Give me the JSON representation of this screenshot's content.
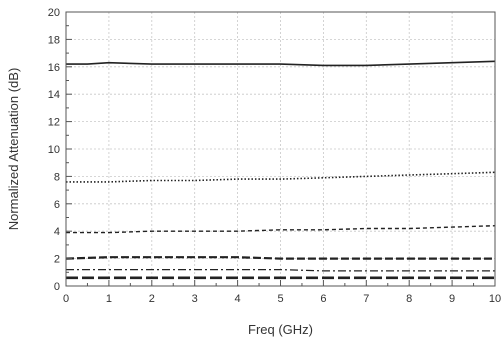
{
  "chart_data": {
    "type": "line",
    "title": "",
    "xlabel": "Freq (GHz)",
    "ylabel": "Normalized Attenuation (dB)",
    "xlim": [
      0,
      10
    ],
    "ylim": [
      0,
      20
    ],
    "x_ticks": [
      "0",
      "1",
      "2",
      "3",
      "4",
      "5",
      "6",
      "7",
      "8",
      "9",
      "10"
    ],
    "y_ticks": [
      "0",
      "2",
      "4",
      "6",
      "8",
      "10",
      "12",
      "14",
      "16",
      "18",
      "20"
    ],
    "grid": true,
    "legend": "none",
    "series": [
      {
        "x": [
          0,
          0.5,
          1,
          2,
          3,
          4,
          5,
          6,
          6.5,
          7,
          8,
          9,
          10
        ],
        "values": [
          16.2,
          16.2,
          16.3,
          16.2,
          16.2,
          16.2,
          16.2,
          16.1,
          16.1,
          16.1,
          16.2,
          16.3,
          16.4
        ],
        "style": "solid",
        "color": "#222222"
      },
      {
        "x": [
          0,
          1,
          2,
          3,
          4,
          5,
          6,
          7,
          8,
          9,
          10
        ],
        "values": [
          7.6,
          7.6,
          7.7,
          7.7,
          7.8,
          7.8,
          7.9,
          8.0,
          8.1,
          8.2,
          8.3
        ],
        "style": "dotted",
        "color": "#222222"
      },
      {
        "x": [
          0,
          1,
          2,
          3,
          4,
          5,
          6,
          7,
          8,
          9,
          10
        ],
        "values": [
          3.9,
          3.9,
          4.0,
          4.0,
          4.0,
          4.1,
          4.1,
          4.2,
          4.2,
          4.3,
          4.4
        ],
        "style": "dashed",
        "color": "#222222"
      },
      {
        "x": [
          0,
          1,
          2,
          3,
          4,
          5,
          6,
          7,
          8,
          9,
          10
        ],
        "values": [
          2.0,
          2.1,
          2.1,
          2.1,
          2.1,
          2.0,
          2.0,
          2.0,
          2.0,
          2.0,
          2.0
        ],
        "style": "long-dashed",
        "color": "#222222"
      },
      {
        "x": [
          0,
          1,
          2,
          3,
          4,
          5,
          6,
          7,
          8,
          9,
          10
        ],
        "values": [
          1.2,
          1.2,
          1.2,
          1.2,
          1.2,
          1.2,
          1.1,
          1.1,
          1.1,
          1.1,
          1.1
        ],
        "style": "dash-dot",
        "color": "#222222"
      },
      {
        "x": [
          0,
          1,
          2,
          3,
          4,
          5,
          6,
          7,
          8,
          9,
          10
        ],
        "values": [
          0.6,
          0.6,
          0.6,
          0.6,
          0.6,
          0.6,
          0.6,
          0.6,
          0.6,
          0.6,
          0.6
        ],
        "style": "heavy-dashed",
        "color": "#222222"
      }
    ]
  }
}
